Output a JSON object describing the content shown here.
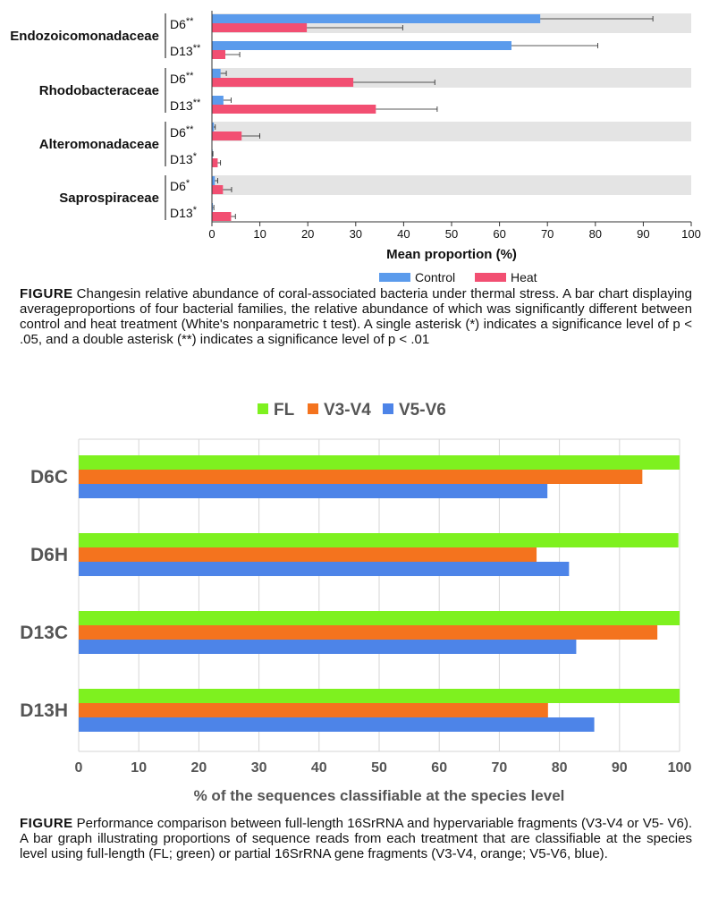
{
  "chart_data": [
    {
      "type": "bar",
      "orientation": "horizontal",
      "groups": [
        {
          "family": "Endozoicomonadaceae",
          "rows": [
            {
              "day": "D6",
              "sig": "**",
              "control": 68.5,
              "control_err": 23.5,
              "heat": 19.8,
              "heat_err": 20.0
            },
            {
              "day": "D13",
              "sig": "**",
              "control": 62.5,
              "control_err": 18.0,
              "heat": 2.8,
              "heat_err": 3.0
            }
          ]
        },
        {
          "family": "Rhodobacteraceae",
          "rows": [
            {
              "day": "D6",
              "sig": "**",
              "control": 1.8,
              "control_err": 1.2,
              "heat": 29.5,
              "heat_err": 17.0
            },
            {
              "day": "D13",
              "sig": "**",
              "control": 2.4,
              "control_err": 1.6,
              "heat": 34.2,
              "heat_err": 12.8
            }
          ]
        },
        {
          "family": "Alteromonadaceae",
          "rows": [
            {
              "day": "D6",
              "sig": "**",
              "control": 0.4,
              "control_err": 0.3,
              "heat": 6.2,
              "heat_err": 3.8
            },
            {
              "day": "D13",
              "sig": "*",
              "control": 0.1,
              "control_err": 0.1,
              "heat": 1.2,
              "heat_err": 0.6
            }
          ]
        },
        {
          "family": "Saprospiraceae",
          "rows": [
            {
              "day": "D6",
              "sig": "*",
              "control": 0.6,
              "control_err": 0.6,
              "heat": 2.3,
              "heat_err": 1.8
            },
            {
              "day": "D13",
              "sig": "*",
              "control": 0.2,
              "control_err": 0.2,
              "heat": 4.0,
              "heat_err": 0.9
            }
          ]
        }
      ],
      "series": [
        {
          "name": "Control",
          "color": "#5b9bec"
        },
        {
          "name": "Heat",
          "color": "#f24f72"
        }
      ],
      "xlabel": "Mean proportion (%)",
      "xlim": [
        0,
        100
      ],
      "xticks": [
        0,
        10,
        20,
        30,
        40,
        50,
        60,
        70,
        80,
        90,
        100
      ],
      "legend_position": "bottom-right"
    },
    {
      "type": "bar",
      "orientation": "horizontal",
      "categories": [
        "D6C",
        "D6H",
        "D13C",
        "D13H"
      ],
      "series": [
        {
          "name": "FL",
          "color": "#7ef11f",
          "values": [
            100,
            99.8,
            100,
            100
          ]
        },
        {
          "name": "V3-V4",
          "color": "#f4731e",
          "values": [
            93.8,
            76.2,
            96.3,
            78.1
          ]
        },
        {
          "name": "V5-V6",
          "color": "#4d84e8",
          "values": [
            78.0,
            81.6,
            82.8,
            85.8
          ]
        }
      ],
      "xlabel": "% of the sequences classifiable at the species level",
      "xlim": [
        0,
        100
      ],
      "xticks": [
        0,
        10,
        20,
        30,
        40,
        50,
        60,
        70,
        80,
        90,
        100
      ],
      "grid": true,
      "legend_position": "top"
    }
  ],
  "captions": {
    "first": {
      "label": "FIGURE",
      "text": "Changesin relative abundance of coral-associated bacteria under thermal stress. A bar chart displaying averageproportions of four bacterial families, the relative abundance of which was significantly different between control and heat treatment (White's nonparametric t test). A single asterisk (*) indicates a significance level of p < .05, and a double asterisk (**) indicates a significance level of p < .01"
    },
    "second": {
      "label": "FIGURE",
      "text": "Performance comparison between full-length 16SrRNA and hypervariable fragments (V3-V4 or V5- V6). A bar graph illustrating proportions of sequence reads from each treatment that are classifiable at the species level using full-length (FL; green) or partial 16SrRNA gene fragments (V3-V4, orange; V5-V6, blue)."
    }
  }
}
